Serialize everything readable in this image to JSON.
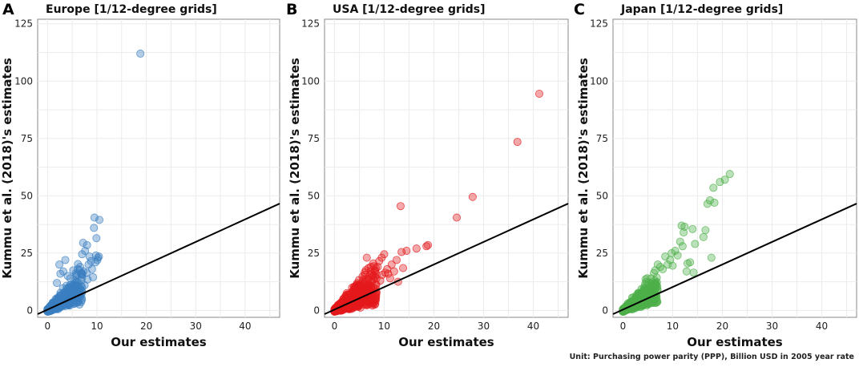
{
  "footnote": "Unit: Purchasing power parity (PPP), Billion USD in 2005 year rate",
  "chart_data": [
    {
      "type": "scatter",
      "panel_label": "A",
      "title": "Europe [1/12-degree grids]",
      "xlabel": "Our estimates",
      "ylabel": "Kummu et al. (2018)'s estimates",
      "xlim": [
        -2,
        47
      ],
      "ylim": [
        -3,
        127
      ],
      "xticks": [
        0,
        10,
        20,
        30,
        40
      ],
      "yticks": [
        0,
        25,
        50,
        75,
        100,
        125
      ],
      "color": "#3a7fc1",
      "reference_line": {
        "x": [
          -2,
          47
        ],
        "y": [
          -1.6,
          46.6
        ]
      },
      "dense_cluster": {
        "x_max": 7.0,
        "slope_low": 0.45,
        "slope_high": 3.5,
        "count": 450
      },
      "x": [
        18.8,
        9.5,
        10.5,
        9.4,
        9.9,
        7.2,
        8.0,
        7.6,
        7.0,
        8.5,
        10.1,
        10.2,
        9.8,
        10.4,
        9.7,
        2.6,
        3.2,
        4.1,
        4.6,
        5.2,
        5.8,
        6.1,
        6.6,
        7.3,
        7.9,
        8.3,
        8.8,
        1.9,
        2.4,
        3.6,
        5.5,
        6.9,
        4.9,
        3.9,
        5.9,
        8.1,
        7.5,
        9.0,
        9.2,
        6.3
      ],
      "y": [
        112,
        40.5,
        39.5,
        36,
        31.5,
        29.5,
        28.5,
        26,
        24.5,
        23.5,
        22,
        23,
        24,
        23.5,
        21,
        16,
        17,
        15,
        14,
        17.5,
        15,
        18,
        19,
        17,
        16.5,
        20,
        21.5,
        12,
        20,
        22,
        13,
        15.5,
        11,
        9.5,
        12.5,
        13.5,
        11,
        18,
        14.5,
        10.5
      ]
    },
    {
      "type": "scatter",
      "panel_label": "B",
      "title": "USA [1/12-degree grids]",
      "xlabel": "Our estimates",
      "ylabel": "Kummu et al. (2018)'s estimates",
      "xlim": [
        -2,
        47
      ],
      "ylim": [
        -3,
        127
      ],
      "xticks": [
        0,
        10,
        20,
        30,
        40
      ],
      "yticks": [
        0,
        25,
        50,
        75,
        100,
        125
      ],
      "color": "#e41a1c",
      "reference_line": {
        "x": [
          -2,
          47
        ],
        "y": [
          -1.6,
          46.6
        ]
      },
      "dense_cluster": {
        "x_max": 8.5,
        "slope_low": 0.35,
        "slope_high": 3.0,
        "count": 650
      },
      "x": [
        41.2,
        36.8,
        27.8,
        24.6,
        13.3,
        18.8,
        18.5,
        16.5,
        14.5,
        13.5,
        13.8,
        12.5,
        12.0,
        11.5,
        10.6,
        10.0,
        9.5,
        9.0,
        8.7,
        10.8,
        7.8,
        6.5,
        9.6,
        11.2,
        12.8,
        9.2,
        10.2
      ],
      "y": [
        94.5,
        73.5,
        49.5,
        40.5,
        45.5,
        28.5,
        28,
        27,
        26,
        25.5,
        18.5,
        22,
        17,
        20,
        18,
        24.5,
        23,
        21.5,
        19,
        16,
        20.5,
        23,
        15.5,
        14,
        12.5,
        13,
        16.5
      ]
    },
    {
      "type": "scatter",
      "panel_label": "C",
      "title": "Japan [1/12-degree grids]",
      "xlabel": "Our estimates",
      "ylabel": "Kummu et al. (2018)'s estimates",
      "xlim": [
        -2,
        47
      ],
      "ylim": [
        -3,
        127
      ],
      "xticks": [
        0,
        10,
        20,
        30,
        40
      ],
      "yticks": [
        0,
        25,
        50,
        75,
        100,
        125
      ],
      "color": "#4daf4a",
      "reference_line": {
        "x": [
          -2,
          47
        ],
        "y": [
          -1.6,
          46.6
        ]
      },
      "dense_cluster": {
        "x_max": 7.0,
        "slope_low": 0.5,
        "slope_high": 3.0,
        "count": 500
      },
      "x": [
        21.5,
        20.5,
        19.5,
        18.2,
        17.5,
        18.4,
        17.0,
        16.6,
        16.2,
        17.8,
        14.0,
        14.5,
        11.8,
        12.2,
        12.4,
        11.5,
        12.0,
        11.0,
        10.5,
        9.8,
        9.5,
        8.5,
        7.5,
        13.5,
        13.0,
        12.8,
        14.2,
        8.0,
        9.0,
        10.0,
        6.5,
        7.0
      ],
      "y": [
        59.5,
        57,
        56,
        53.5,
        48,
        47,
        46.5,
        35,
        32,
        23,
        35.5,
        29,
        37,
        34,
        36.5,
        30,
        28,
        24,
        26,
        25,
        22,
        23.5,
        19,
        21,
        20.5,
        17,
        16.5,
        18,
        20,
        19.5,
        17.5,
        20
      ]
    }
  ]
}
